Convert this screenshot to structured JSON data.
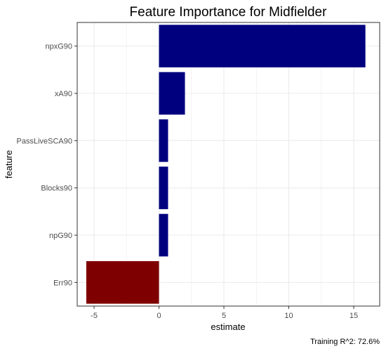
{
  "chart_data": {
    "type": "bar",
    "orientation": "horizontal",
    "title": "Feature Importance for Midfielder",
    "xlabel": "estimate",
    "ylabel": "feature",
    "caption": "Training R^2: 72.6%",
    "categories": [
      "npxG90",
      "xA90",
      "PassLiveSCA90",
      "Blocks90",
      "npG90",
      "Err90"
    ],
    "values": [
      15.9,
      2.0,
      0.7,
      0.7,
      0.7,
      -5.6
    ],
    "xlim": [
      -6.3,
      17.0
    ],
    "xticks": [
      -5,
      0,
      5,
      10,
      15
    ],
    "grid": true,
    "colors": {
      "positive": "#00007f",
      "negative": "#7f0000",
      "grid": "#ebebeb",
      "border": "#333333"
    }
  }
}
